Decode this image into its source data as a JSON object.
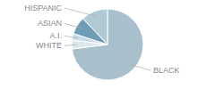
{
  "chart_data": {
    "type": "pie",
    "categories": [
      "BLACK",
      "WHITE",
      "A.I.",
      "ASIAN",
      "HISPANIC"
    ],
    "values": [
      73,
      4,
      3,
      8,
      12
    ],
    "colors": [
      "#a8bfcc",
      "#dce8ee",
      "#c8dde6",
      "#6e9db5",
      "#b0cad4"
    ]
  }
}
